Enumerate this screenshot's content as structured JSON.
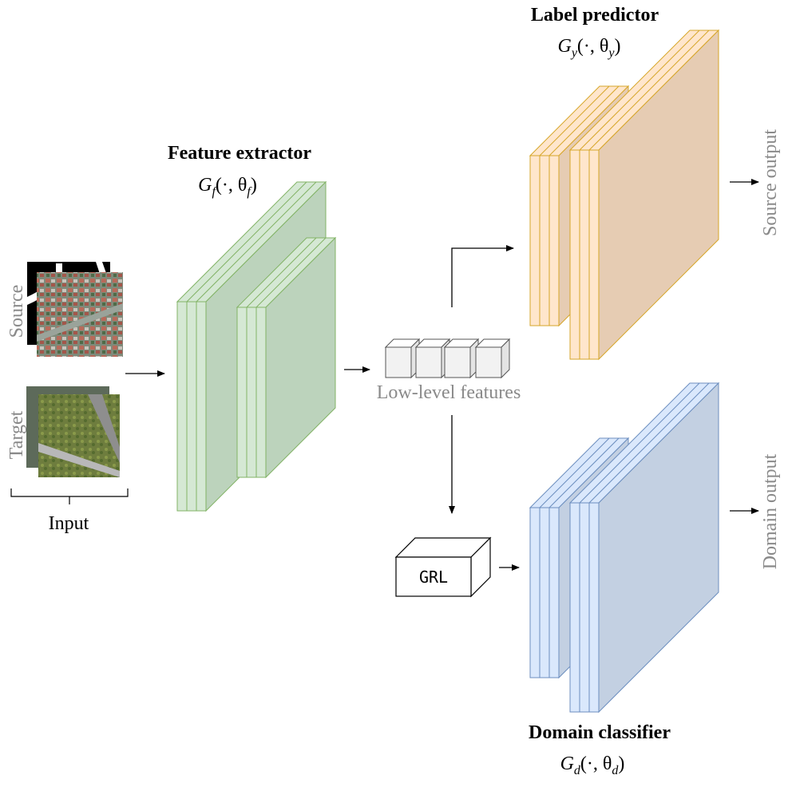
{
  "blocks": {
    "feature_extractor": {
      "title": "Feature extractor",
      "formula_main": "G",
      "formula_sub": "f",
      "formula_args": "(·, θ",
      "formula_args_sub": "f",
      "formula_close": ")"
    },
    "label_predictor": {
      "title": "Label predictor",
      "formula_main": "G",
      "formula_sub": "y",
      "formula_args": "(·, θ",
      "formula_args_sub": "y",
      "formula_close": ")"
    },
    "domain_classifier": {
      "title": "Domain classifier",
      "formula_main": "G",
      "formula_sub": "d",
      "formula_args": "(·, θ",
      "formula_args_sub": "d",
      "formula_close": ")"
    }
  },
  "labels": {
    "source": "Source",
    "target": "Target",
    "input": "Input",
    "low_level_features": "Low-level features",
    "grl": "GRL",
    "source_output": "Source output",
    "domain_output": "Domain output"
  },
  "colors": {
    "green_front": "#d5e8d4",
    "green_side": "#bcd3bc",
    "green_stroke": "#82b366",
    "orange_front": "#ffe6cc",
    "orange_side": "#e6ccb3",
    "orange_stroke": "#d6a62a",
    "blue_front": "#dae8fc",
    "blue_side": "#c3d0e2",
    "blue_stroke": "#6c8ebf",
    "gray_text": "#8a8a8a"
  }
}
